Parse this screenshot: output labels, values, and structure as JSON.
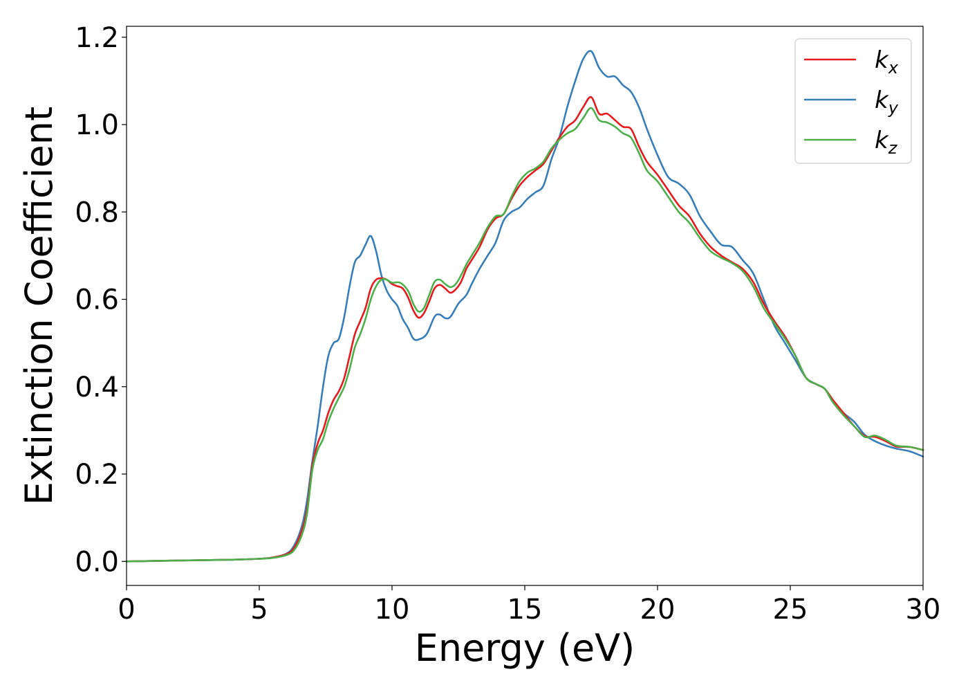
{
  "chart_data": {
    "type": "line",
    "title": "",
    "xlabel": "Energy (eV)",
    "ylabel": "Extinction Coefficient",
    "xlim": [
      0,
      30
    ],
    "ylim": [
      -0.055,
      1.225
    ],
    "xticks": [
      0,
      5,
      10,
      15,
      20,
      25,
      30
    ],
    "xtick_labels": [
      "0",
      "5",
      "10",
      "15",
      "20",
      "25",
      "30"
    ],
    "yticks": [
      0.0,
      0.2,
      0.4,
      0.6,
      0.8,
      1.0,
      1.2
    ],
    "ytick_labels": [
      "0.0",
      "0.2",
      "0.4",
      "0.6",
      "0.8",
      "1.0",
      "1.2"
    ],
    "grid": false,
    "legend_position": "top-right",
    "series": [
      {
        "name": "k",
        "subscript": "x",
        "color": "#e41a1c",
        "points": [
          [
            0,
            0.0
          ],
          [
            2,
            0.002
          ],
          [
            4,
            0.004
          ],
          [
            5,
            0.006
          ],
          [
            5.5,
            0.009
          ],
          [
            6,
            0.016
          ],
          [
            6.3,
            0.03
          ],
          [
            6.6,
            0.07
          ],
          [
            6.8,
            0.12
          ],
          [
            7,
            0.22
          ],
          [
            7.2,
            0.27
          ],
          [
            7.4,
            0.3
          ],
          [
            7.6,
            0.34
          ],
          [
            7.8,
            0.37
          ],
          [
            8.0,
            0.39
          ],
          [
            8.2,
            0.42
          ],
          [
            8.4,
            0.47
          ],
          [
            8.6,
            0.52
          ],
          [
            8.8,
            0.55
          ],
          [
            9.0,
            0.58
          ],
          [
            9.2,
            0.625
          ],
          [
            9.4,
            0.645
          ],
          [
            9.6,
            0.648
          ],
          [
            9.8,
            0.645
          ],
          [
            10.0,
            0.635
          ],
          [
            10.2,
            0.63
          ],
          [
            10.4,
            0.625
          ],
          [
            10.6,
            0.605
          ],
          [
            10.8,
            0.575
          ],
          [
            11.0,
            0.558
          ],
          [
            11.2,
            0.568
          ],
          [
            11.4,
            0.595
          ],
          [
            11.6,
            0.625
          ],
          [
            11.8,
            0.633
          ],
          [
            12.0,
            0.625
          ],
          [
            12.2,
            0.615
          ],
          [
            12.4,
            0.623
          ],
          [
            12.6,
            0.64
          ],
          [
            12.8,
            0.67
          ],
          [
            13.0,
            0.69
          ],
          [
            13.3,
            0.72
          ],
          [
            13.6,
            0.76
          ],
          [
            13.9,
            0.785
          ],
          [
            14.2,
            0.795
          ],
          [
            14.5,
            0.83
          ],
          [
            14.8,
            0.86
          ],
          [
            15.1,
            0.88
          ],
          [
            15.4,
            0.895
          ],
          [
            15.7,
            0.91
          ],
          [
            16.0,
            0.94
          ],
          [
            16.3,
            0.97
          ],
          [
            16.6,
            0.995
          ],
          [
            16.9,
            1.01
          ],
          [
            17.2,
            1.04
          ],
          [
            17.5,
            1.063
          ],
          [
            17.8,
            1.025
          ],
          [
            18.1,
            1.025
          ],
          [
            18.4,
            1.01
          ],
          [
            18.7,
            0.995
          ],
          [
            19.0,
            0.99
          ],
          [
            19.3,
            0.95
          ],
          [
            19.6,
            0.915
          ],
          [
            20.0,
            0.885
          ],
          [
            20.4,
            0.85
          ],
          [
            20.8,
            0.815
          ],
          [
            21.2,
            0.79
          ],
          [
            21.6,
            0.75
          ],
          [
            22.0,
            0.72
          ],
          [
            22.4,
            0.7
          ],
          [
            22.8,
            0.685
          ],
          [
            23.2,
            0.67
          ],
          [
            23.6,
            0.64
          ],
          [
            24.0,
            0.59
          ],
          [
            24.4,
            0.55
          ],
          [
            24.8,
            0.515
          ],
          [
            25.2,
            0.47
          ],
          [
            25.6,
            0.42
          ],
          [
            26.0,
            0.405
          ],
          [
            26.3,
            0.395
          ],
          [
            26.6,
            0.37
          ],
          [
            27.0,
            0.34
          ],
          [
            27.4,
            0.31
          ],
          [
            27.8,
            0.287
          ],
          [
            28.2,
            0.285
          ],
          [
            28.6,
            0.275
          ],
          [
            29.0,
            0.263
          ],
          [
            29.5,
            0.262
          ],
          [
            30,
            0.255
          ]
        ]
      },
      {
        "name": "k",
        "subscript": "y",
        "color": "#377eb8",
        "points": [
          [
            0,
            0.0
          ],
          [
            2,
            0.002
          ],
          [
            4,
            0.004
          ],
          [
            5,
            0.006
          ],
          [
            5.5,
            0.009
          ],
          [
            6,
            0.017
          ],
          [
            6.3,
            0.035
          ],
          [
            6.6,
            0.08
          ],
          [
            6.8,
            0.14
          ],
          [
            7,
            0.23
          ],
          [
            7.2,
            0.31
          ],
          [
            7.4,
            0.4
          ],
          [
            7.6,
            0.47
          ],
          [
            7.8,
            0.5
          ],
          [
            8.0,
            0.51
          ],
          [
            8.2,
            0.56
          ],
          [
            8.4,
            0.63
          ],
          [
            8.6,
            0.685
          ],
          [
            8.8,
            0.7
          ],
          [
            9.0,
            0.725
          ],
          [
            9.2,
            0.745
          ],
          [
            9.4,
            0.71
          ],
          [
            9.6,
            0.655
          ],
          [
            9.8,
            0.62
          ],
          [
            10.0,
            0.6
          ],
          [
            10.2,
            0.585
          ],
          [
            10.4,
            0.555
          ],
          [
            10.6,
            0.535
          ],
          [
            10.8,
            0.51
          ],
          [
            11.0,
            0.508
          ],
          [
            11.3,
            0.52
          ],
          [
            11.6,
            0.56
          ],
          [
            11.8,
            0.565
          ],
          [
            12.0,
            0.557
          ],
          [
            12.2,
            0.56
          ],
          [
            12.5,
            0.59
          ],
          [
            12.8,
            0.61
          ],
          [
            13.0,
            0.635
          ],
          [
            13.3,
            0.67
          ],
          [
            13.6,
            0.7
          ],
          [
            13.9,
            0.73
          ],
          [
            14.2,
            0.78
          ],
          [
            14.5,
            0.8
          ],
          [
            14.8,
            0.81
          ],
          [
            15.1,
            0.83
          ],
          [
            15.4,
            0.845
          ],
          [
            15.7,
            0.86
          ],
          [
            16.0,
            0.92
          ],
          [
            16.3,
            0.97
          ],
          [
            16.6,
            1.04
          ],
          [
            16.9,
            1.1
          ],
          [
            17.2,
            1.15
          ],
          [
            17.5,
            1.168
          ],
          [
            17.8,
            1.13
          ],
          [
            18.1,
            1.11
          ],
          [
            18.4,
            1.11
          ],
          [
            18.7,
            1.09
          ],
          [
            19.0,
            1.075
          ],
          [
            19.3,
            1.04
          ],
          [
            19.6,
            0.99
          ],
          [
            20.0,
            0.93
          ],
          [
            20.4,
            0.88
          ],
          [
            20.8,
            0.865
          ],
          [
            21.2,
            0.84
          ],
          [
            21.6,
            0.79
          ],
          [
            22.0,
            0.755
          ],
          [
            22.4,
            0.725
          ],
          [
            22.8,
            0.72
          ],
          [
            23.2,
            0.69
          ],
          [
            23.6,
            0.66
          ],
          [
            24.0,
            0.6
          ],
          [
            24.4,
            0.54
          ],
          [
            24.8,
            0.5
          ],
          [
            25.2,
            0.46
          ],
          [
            25.6,
            0.42
          ],
          [
            26.0,
            0.405
          ],
          [
            26.3,
            0.395
          ],
          [
            26.6,
            0.365
          ],
          [
            27.0,
            0.34
          ],
          [
            27.4,
            0.32
          ],
          [
            27.8,
            0.29
          ],
          [
            28.2,
            0.275
          ],
          [
            28.6,
            0.265
          ],
          [
            29.0,
            0.258
          ],
          [
            29.5,
            0.252
          ],
          [
            30,
            0.24
          ]
        ]
      },
      {
        "name": "k",
        "subscript": "z",
        "color": "#4daf4a",
        "points": [
          [
            0,
            0.0
          ],
          [
            2,
            0.002
          ],
          [
            4,
            0.004
          ],
          [
            5,
            0.006
          ],
          [
            5.5,
            0.008
          ],
          [
            6,
            0.014
          ],
          [
            6.3,
            0.025
          ],
          [
            6.6,
            0.06
          ],
          [
            6.8,
            0.11
          ],
          [
            7,
            0.21
          ],
          [
            7.2,
            0.255
          ],
          [
            7.4,
            0.28
          ],
          [
            7.6,
            0.32
          ],
          [
            7.8,
            0.35
          ],
          [
            8.0,
            0.375
          ],
          [
            8.2,
            0.4
          ],
          [
            8.4,
            0.44
          ],
          [
            8.6,
            0.49
          ],
          [
            8.8,
            0.52
          ],
          [
            9.0,
            0.555
          ],
          [
            9.2,
            0.6
          ],
          [
            9.4,
            0.63
          ],
          [
            9.6,
            0.645
          ],
          [
            9.8,
            0.645
          ],
          [
            10.0,
            0.638
          ],
          [
            10.3,
            0.638
          ],
          [
            10.6,
            0.62
          ],
          [
            10.8,
            0.59
          ],
          [
            11.0,
            0.572
          ],
          [
            11.2,
            0.58
          ],
          [
            11.4,
            0.61
          ],
          [
            11.6,
            0.64
          ],
          [
            11.8,
            0.645
          ],
          [
            12.0,
            0.635
          ],
          [
            12.2,
            0.628
          ],
          [
            12.4,
            0.635
          ],
          [
            12.6,
            0.655
          ],
          [
            12.8,
            0.68
          ],
          [
            13.0,
            0.7
          ],
          [
            13.3,
            0.73
          ],
          [
            13.6,
            0.765
          ],
          [
            13.9,
            0.79
          ],
          [
            14.2,
            0.795
          ],
          [
            14.5,
            0.835
          ],
          [
            14.8,
            0.87
          ],
          [
            15.1,
            0.89
          ],
          [
            15.4,
            0.9
          ],
          [
            15.7,
            0.915
          ],
          [
            16.0,
            0.945
          ],
          [
            16.3,
            0.965
          ],
          [
            16.6,
            0.98
          ],
          [
            16.9,
            0.99
          ],
          [
            17.2,
            1.015
          ],
          [
            17.5,
            1.038
          ],
          [
            17.8,
            1.01
          ],
          [
            18.1,
            1.005
          ],
          [
            18.4,
            0.995
          ],
          [
            18.7,
            0.98
          ],
          [
            19.0,
            0.97
          ],
          [
            19.3,
            0.935
          ],
          [
            19.6,
            0.895
          ],
          [
            20.0,
            0.87
          ],
          [
            20.4,
            0.835
          ],
          [
            20.8,
            0.8
          ],
          [
            21.2,
            0.775
          ],
          [
            21.6,
            0.74
          ],
          [
            22.0,
            0.71
          ],
          [
            22.4,
            0.695
          ],
          [
            22.8,
            0.683
          ],
          [
            23.2,
            0.665
          ],
          [
            23.6,
            0.63
          ],
          [
            24.0,
            0.58
          ],
          [
            24.4,
            0.545
          ],
          [
            24.8,
            0.51
          ],
          [
            25.2,
            0.47
          ],
          [
            25.6,
            0.42
          ],
          [
            26.0,
            0.405
          ],
          [
            26.3,
            0.395
          ],
          [
            26.6,
            0.365
          ],
          [
            27.0,
            0.335
          ],
          [
            27.4,
            0.31
          ],
          [
            27.8,
            0.285
          ],
          [
            28.2,
            0.288
          ],
          [
            28.6,
            0.278
          ],
          [
            29.0,
            0.265
          ],
          [
            29.5,
            0.262
          ],
          [
            30,
            0.255
          ]
        ]
      }
    ]
  }
}
